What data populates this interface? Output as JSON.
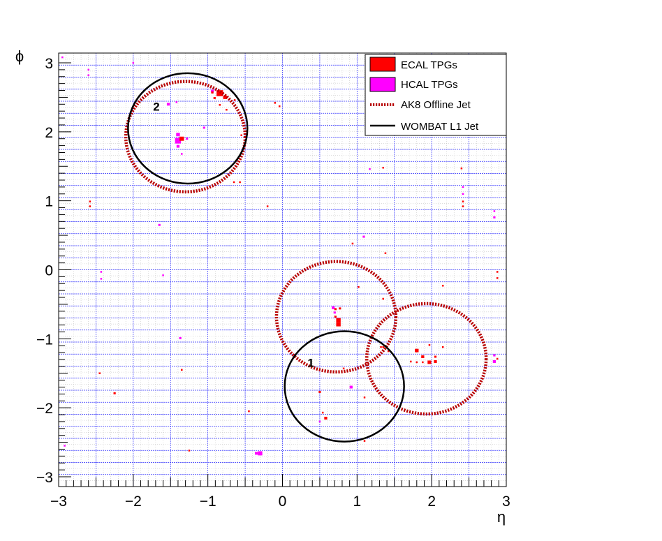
{
  "chart_data": {
    "type": "scatter",
    "xlabel": "η",
    "ylabel": "ϕ",
    "xlim": [
      -3,
      3
    ],
    "ylim": [
      -3.1416,
      3.1416
    ],
    "x_ticks": [
      -3,
      -2,
      -1,
      0,
      1,
      2,
      3
    ],
    "y_ticks": [
      -3,
      -2,
      -1,
      0,
      1,
      2,
      3
    ],
    "x_tick_labels": [
      "−3",
      "−2",
      "−1",
      "0",
      "1",
      "2",
      "3"
    ],
    "y_tick_labels": [
      "−3",
      "−2",
      "−1",
      "0",
      "1",
      "2",
      "3"
    ],
    "grid": true,
    "legend_position": "top-right",
    "colors": {
      "ecal": "#ff0000",
      "hcal": "#ff00ff",
      "ak8": "#b80000",
      "wombat": "#000000",
      "grid_major": "#3333ff",
      "grid_minor": "#bbbbbb"
    },
    "legend": [
      {
        "label": "ECAL TPGs",
        "style": "box",
        "color": "#ff0000"
      },
      {
        "label": "HCAL TPGs",
        "style": "box",
        "color": "#ff00ff"
      },
      {
        "label": "AK8 Offline Jet",
        "style": "dotted-line",
        "color": "#b80000"
      },
      {
        "label": "WOMBAT L1 Jet",
        "style": "solid-line",
        "color": "#000000"
      }
    ],
    "ak8_jets": [
      {
        "eta": -1.3,
        "phi": 1.93,
        "r": 0.8
      },
      {
        "eta": 0.72,
        "phi": -0.68,
        "r": 0.8
      },
      {
        "eta": 1.93,
        "phi": -1.29,
        "r": 0.8
      }
    ],
    "wombat_jets": [
      {
        "label": "2",
        "eta": -1.27,
        "phi": 2.05,
        "r": 0.8,
        "label_eta": -1.69,
        "label_phi": 2.35
      },
      {
        "label": "1",
        "eta": 0.83,
        "phi": -1.69,
        "r": 0.8,
        "label_eta": 0.38,
        "label_phi": -1.36
      }
    ],
    "ecal_tpgs": [
      {
        "eta": -0.84,
        "phi": 2.56,
        "w": 0.087,
        "h": 0.087
      },
      {
        "eta": -0.77,
        "phi": 2.5,
        "w": 0.05,
        "h": 0.05
      },
      {
        "eta": -0.91,
        "phi": 2.49,
        "w": 0.03,
        "h": 0.03
      },
      {
        "eta": -0.94,
        "phi": 2.57,
        "w": 0.03,
        "h": 0.03
      },
      {
        "eta": -0.84,
        "phi": 2.39,
        "w": 0.02,
        "h": 0.02
      },
      {
        "eta": -0.75,
        "phi": 2.32,
        "w": 0.02,
        "h": 0.02
      },
      {
        "eta": -0.64,
        "phi": 2.46,
        "w": 0.02,
        "h": 0.02
      },
      {
        "eta": -0.55,
        "phi": 1.95,
        "w": 0.02,
        "h": 0.02
      },
      {
        "eta": -1.35,
        "phi": 1.9,
        "w": 0.06,
        "h": 0.06
      },
      {
        "eta": -0.57,
        "phi": 1.27,
        "w": 0.02,
        "h": 0.02
      },
      {
        "eta": -0.65,
        "phi": 1.27,
        "w": 0.02,
        "h": 0.02
      },
      {
        "eta": -0.1,
        "phi": 2.42,
        "w": 0.02,
        "h": 0.02
      },
      {
        "eta": -0.04,
        "phi": 2.37,
        "w": 0.02,
        "h": 0.02
      },
      {
        "eta": -2.58,
        "phi": 0.99,
        "w": 0.02,
        "h": 0.02
      },
      {
        "eta": -2.58,
        "phi": 0.92,
        "w": 0.02,
        "h": 0.02
      },
      {
        "eta": 0.75,
        "phi": -0.73,
        "w": 0.06,
        "h": 0.06
      },
      {
        "eta": 0.75,
        "phi": -0.79,
        "w": 0.06,
        "h": 0.06
      },
      {
        "eta": 0.71,
        "phi": -0.57,
        "w": 0.03,
        "h": 0.03
      },
      {
        "eta": 0.77,
        "phi": -0.56,
        "w": 0.03,
        "h": 0.03
      },
      {
        "eta": 0.71,
        "phi": -0.68,
        "w": 0.03,
        "h": 0.03
      },
      {
        "eta": 0.58,
        "phi": -2.15,
        "w": 0.04,
        "h": 0.04
      },
      {
        "eta": 0.5,
        "phi": -1.77,
        "w": 0.03,
        "h": 0.03
      },
      {
        "eta": 0.54,
        "phi": -2.07,
        "w": 0.02,
        "h": 0.02
      },
      {
        "eta": 0.82,
        "phi": -1.43,
        "w": 0.02,
        "h": 0.02
      },
      {
        "eta": 1.35,
        "phi": -1.12,
        "w": 0.02,
        "h": 0.02
      },
      {
        "eta": 1.42,
        "phi": -1.18,
        "w": 0.02,
        "h": 0.02
      },
      {
        "eta": 1.8,
        "phi": -1.17,
        "w": 0.05,
        "h": 0.05
      },
      {
        "eta": 1.88,
        "phi": -1.26,
        "w": 0.04,
        "h": 0.04
      },
      {
        "eta": 1.97,
        "phi": -1.34,
        "w": 0.05,
        "h": 0.05
      },
      {
        "eta": 2.05,
        "phi": -1.33,
        "w": 0.04,
        "h": 0.04
      },
      {
        "eta": 2.05,
        "phi": -1.26,
        "w": 0.03,
        "h": 0.03
      },
      {
        "eta": 1.97,
        "phi": -1.09,
        "w": 0.02,
        "h": 0.02
      },
      {
        "eta": 1.8,
        "phi": -1.34,
        "w": 0.02,
        "h": 0.02
      },
      {
        "eta": 1.72,
        "phi": -1.33,
        "w": 0.02,
        "h": 0.02
      },
      {
        "eta": 1.88,
        "phi": -1.34,
        "w": 0.02,
        "h": 0.02
      },
      {
        "eta": 1.32,
        "phi": -1.12,
        "w": 0.02,
        "h": 0.02
      },
      {
        "eta": -2.25,
        "phi": -1.79,
        "w": 0.03,
        "h": 0.03
      },
      {
        "eta": -1.25,
        "phi": -2.62,
        "w": 0.02,
        "h": 0.02
      },
      {
        "eta": 0.94,
        "phi": 0.38,
        "w": 0.02,
        "h": 0.02
      },
      {
        "eta": 1.02,
        "phi": -0.25,
        "w": 0.02,
        "h": 0.02
      },
      {
        "eta": 1.38,
        "phi": 0.24,
        "w": 0.02,
        "h": 0.02
      },
      {
        "eta": 1.35,
        "phi": -0.42,
        "w": 0.02,
        "h": 0.02
      },
      {
        "eta": 2.4,
        "phi": 1.47,
        "w": 0.02,
        "h": 0.02
      },
      {
        "eta": 2.42,
        "phi": 0.99,
        "w": 0.02,
        "h": 0.02
      },
      {
        "eta": 2.42,
        "phi": 0.92,
        "w": 0.02,
        "h": 0.02
      },
      {
        "eta": 2.15,
        "phi": -1.12,
        "w": 0.02,
        "h": 0.02
      },
      {
        "eta": 2.15,
        "phi": -0.23,
        "w": 0.02,
        "h": 0.02
      },
      {
        "eta": 2.88,
        "phi": -0.03,
        "w": 0.02,
        "h": 0.02
      },
      {
        "eta": 2.88,
        "phi": -0.12,
        "w": 0.02,
        "h": 0.02
      },
      {
        "eta": 2.88,
        "phi": -1.29,
        "w": 0.02,
        "h": 0.02
      },
      {
        "eta": 1.35,
        "phi": 2.0,
        "w": 0.02,
        "h": 0.02
      },
      {
        "eta": 1.35,
        "phi": 1.48,
        "w": 0.02,
        "h": 0.02
      },
      {
        "eta": -0.2,
        "phi": 0.92,
        "w": 0.02,
        "h": 0.02
      },
      {
        "eta": -2.45,
        "phi": -1.5,
        "w": 0.02,
        "h": 0.02
      },
      {
        "eta": -1.35,
        "phi": -1.45,
        "w": 0.02,
        "h": 0.02
      },
      {
        "eta": -0.45,
        "phi": -2.05,
        "w": 0.02,
        "h": 0.02
      },
      {
        "eta": 1.1,
        "phi": -1.85,
        "w": 0.02,
        "h": 0.02
      },
      {
        "eta": 1.1,
        "phi": -2.48,
        "w": 0.02,
        "h": 0.02
      }
    ],
    "hcal_tpgs": [
      {
        "eta": -0.94,
        "phi": 2.59,
        "w": 0.04,
        "h": 0.04
      },
      {
        "eta": -1.4,
        "phi": 1.87,
        "w": 0.08,
        "h": 0.08
      },
      {
        "eta": -1.4,
        "phi": 1.96,
        "w": 0.05,
        "h": 0.05
      },
      {
        "eta": -1.4,
        "phi": 1.79,
        "w": 0.04,
        "h": 0.04
      },
      {
        "eta": -1.53,
        "phi": 2.4,
        "w": 0.04,
        "h": 0.04
      },
      {
        "eta": -1.28,
        "phi": 1.9,
        "w": 0.03,
        "h": 0.03
      },
      {
        "eta": -1.35,
        "phi": 1.68,
        "w": 0.02,
        "h": 0.02
      },
      {
        "eta": -1.42,
        "phi": 2.43,
        "w": 0.02,
        "h": 0.02
      },
      {
        "eta": -1.05,
        "phi": 2.06,
        "w": 0.03,
        "h": 0.03
      },
      {
        "eta": -2.6,
        "phi": 2.9,
        "w": 0.02,
        "h": 0.02
      },
      {
        "eta": -2.6,
        "phi": 2.82,
        "w": 0.02,
        "h": 0.02
      },
      {
        "eta": -2.95,
        "phi": 3.08,
        "w": 0.02,
        "h": 0.02
      },
      {
        "eta": -2.0,
        "phi": 3.0,
        "w": 0.02,
        "h": 0.02
      },
      {
        "eta": -1.65,
        "phi": 0.65,
        "w": 0.03,
        "h": 0.03
      },
      {
        "eta": 0.68,
        "phi": -0.55,
        "w": 0.04,
        "h": 0.04
      },
      {
        "eta": 0.7,
        "phi": -0.62,
        "w": 0.03,
        "h": 0.03
      },
      {
        "eta": 0.92,
        "phi": -1.7,
        "w": 0.04,
        "h": 0.04
      },
      {
        "eta": 1.09,
        "phi": 0.48,
        "w": 0.03,
        "h": 0.03
      },
      {
        "eta": 1.17,
        "phi": 1.46,
        "w": 0.02,
        "h": 0.02
      },
      {
        "eta": -0.3,
        "phi": -2.66,
        "w": 0.06,
        "h": 0.06
      },
      {
        "eta": -0.35,
        "phi": -2.66,
        "w": 0.04,
        "h": 0.04
      },
      {
        "eta": -2.43,
        "phi": -0.13,
        "w": 0.02,
        "h": 0.02
      },
      {
        "eta": -2.43,
        "phi": -0.03,
        "w": 0.02,
        "h": 0.02
      },
      {
        "eta": -1.6,
        "phi": -0.08,
        "w": 0.02,
        "h": 0.02
      },
      {
        "eta": -1.37,
        "phi": -0.99,
        "w": 0.03,
        "h": 0.03
      },
      {
        "eta": 2.84,
        "phi": -1.33,
        "w": 0.04,
        "h": 0.04
      },
      {
        "eta": 2.84,
        "phi": -1.24,
        "w": 0.03,
        "h": 0.03
      },
      {
        "eta": 2.84,
        "phi": 0.76,
        "w": 0.03,
        "h": 0.03
      },
      {
        "eta": 2.84,
        "phi": 0.85,
        "w": 0.02,
        "h": 0.02
      },
      {
        "eta": 2.42,
        "phi": 1.2,
        "w": 0.02,
        "h": 0.02
      },
      {
        "eta": 2.42,
        "phi": 1.1,
        "w": 0.02,
        "h": 0.02
      },
      {
        "eta": 0.5,
        "phi": -2.2,
        "w": 0.02,
        "h": 0.02
      },
      {
        "eta": -2.92,
        "phi": -2.55,
        "w": 0.02,
        "h": 0.02
      }
    ]
  }
}
